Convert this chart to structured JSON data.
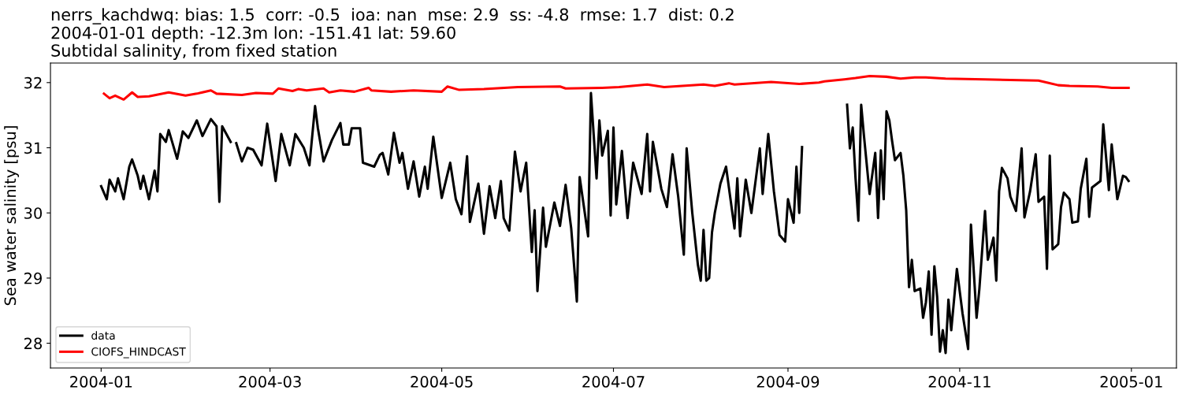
{
  "chart_data": {
    "type": "line",
    "title": "nerrs_kachdwq: bias: 1.5  corr: -0.5  ioa: nan  mse: 2.9  ss: -4.8  rmse: 1.7  dist: 0.2",
    "subtitle": "2004-01-01 depth: -12.3m lon: -151.41 lat: 59.60\nSubtidal salinity, from fixed station",
    "ylabel": "Sea water salinity [psu]",
    "xlim": [
      "2003-12-14",
      "2005-01-17"
    ],
    "xticks": [
      "2004-01",
      "2004-03",
      "2004-05",
      "2004-07",
      "2004-09",
      "2004-11",
      "2005-01"
    ],
    "ylim": [
      27.62,
      32.3
    ],
    "yticks": [
      28,
      29,
      30,
      31,
      32
    ],
    "grid": false,
    "legend": "bottom left",
    "line_style": "solid",
    "marker": "none",
    "series": [
      {
        "name": "data",
        "color": "#000000",
        "x": [
          "2004-01-01",
          "2004-01-03",
          "2004-01-04",
          "2004-01-06",
          "2004-01-07",
          "2004-01-09",
          "2004-01-11",
          "2004-01-12",
          "2004-01-14",
          "2004-01-15",
          "2004-01-16",
          "2004-01-18",
          "2004-01-20",
          "2004-01-21",
          "2004-01-22",
          "2004-01-24",
          "2004-01-25",
          "2004-01-28",
          "2004-01-30",
          "2004-02-01",
          "2004-02-04",
          "2004-02-06",
          "2004-02-09",
          "2004-02-11",
          "2004-02-12",
          "2004-02-13",
          "2004-02-16",
          "2004-02-17",
          "2004-02-18",
          "2004-02-20",
          "2004-02-22",
          "2004-02-24",
          "2004-02-27",
          "2004-02-29",
          "2004-03-03",
          "2004-03-05",
          "2004-03-08",
          "2004-03-10",
          "2004-03-13",
          "2004-03-15",
          "2004-03-17",
          "2004-03-18",
          "2004-03-20",
          "2004-03-23",
          "2004-03-26",
          "2004-03-27",
          "2004-03-29",
          "2004-03-30",
          "2004-04-02",
          "2004-04-03",
          "2004-04-07",
          "2004-04-09",
          "2004-04-10",
          "2004-04-12",
          "2004-04-14",
          "2004-04-16",
          "2004-04-17",
          "2004-04-19",
          "2004-04-21",
          "2004-04-23",
          "2004-04-25",
          "2004-04-26",
          "2004-04-28",
          "2004-05-01",
          "2004-05-04",
          "2004-05-06",
          "2004-05-08",
          "2004-05-10",
          "2004-05-11",
          "2004-05-14",
          "2004-05-16",
          "2004-05-18",
          "2004-05-20",
          "2004-05-22",
          "2004-05-23",
          "2004-05-25",
          "2004-05-27",
          "2004-05-29",
          "2004-05-31",
          "2004-06-02",
          "2004-06-03",
          "2004-06-04",
          "2004-06-06",
          "2004-06-07",
          "2004-06-10",
          "2004-06-12",
          "2004-06-14",
          "2004-06-16",
          "2004-06-18",
          "2004-06-19",
          "2004-06-22",
          "2004-06-23",
          "2004-06-25",
          "2004-06-26",
          "2004-06-27",
          "2004-06-29",
          "2004-06-30",
          "2004-07-01",
          "2004-07-02",
          "2004-07-04",
          "2004-07-06",
          "2004-07-08",
          "2004-07-11",
          "2004-07-13",
          "2004-07-14",
          "2004-07-15",
          "2004-07-18",
          "2004-07-20",
          "2004-07-22",
          "2004-07-24",
          "2004-07-26",
          "2004-07-27",
          "2004-07-29",
          "2004-07-31",
          "2004-08-01",
          "2004-08-02",
          "2004-08-03",
          "2004-08-04",
          "2004-08-05",
          "2004-08-06",
          "2004-08-08",
          "2004-08-10",
          "2004-08-13",
          "2004-08-14",
          "2004-08-15",
          "2004-08-17",
          "2004-08-19",
          "2004-08-22",
          "2004-08-23",
          "2004-08-25",
          "2004-08-27",
          "2004-08-29",
          "2004-08-31",
          "2004-09-01",
          "2004-09-03",
          "2004-09-04",
          "2004-09-05",
          "2004-09-06",
          "2004-09-15",
          "2004-09-22",
          "2004-09-23",
          "2004-09-24",
          "2004-09-25",
          "2004-09-26",
          "2004-09-27",
          "2004-09-28",
          "2004-09-30",
          "2004-10-02",
          "2004-10-03",
          "2004-10-04",
          "2004-10-05",
          "2004-10-06",
          "2004-10-07",
          "2004-10-08",
          "2004-10-09",
          "2004-10-11",
          "2004-10-12",
          "2004-10-13",
          "2004-10-14",
          "2004-10-15",
          "2004-10-16",
          "2004-10-18",
          "2004-10-19",
          "2004-10-20",
          "2004-10-21",
          "2004-10-22",
          "2004-10-23",
          "2004-10-24",
          "2004-10-25",
          "2004-10-26",
          "2004-10-27",
          "2004-10-28",
          "2004-10-29",
          "2004-10-31",
          "2004-11-02",
          "2004-11-04",
          "2004-11-05",
          "2004-11-07",
          "2004-11-08",
          "2004-11-10",
          "2004-11-11",
          "2004-11-13",
          "2004-11-14",
          "2004-11-15",
          "2004-11-16",
          "2004-11-18",
          "2004-11-19",
          "2004-11-21",
          "2004-11-23",
          "2004-11-24",
          "2004-11-26",
          "2004-11-28",
          "2004-11-29",
          "2004-12-01",
          "2004-12-02",
          "2004-12-03",
          "2004-12-04",
          "2004-12-06",
          "2004-12-07",
          "2004-12-08",
          "2004-12-10",
          "2004-12-11",
          "2004-12-13",
          "2004-12-14",
          "2004-12-16",
          "2004-12-17",
          "2004-12-18",
          "2004-12-21",
          "2004-12-22",
          "2004-12-24",
          "2004-12-25",
          "2004-12-27",
          "2004-12-29",
          "2004-12-30",
          "2004-12-31"
        ],
        "values": [
          30.41,
          30.21,
          30.51,
          30.33,
          30.53,
          30.21,
          30.71,
          30.82,
          30.57,
          30.37,
          30.57,
          30.21,
          30.65,
          30.33,
          31.21,
          31.09,
          31.27,
          30.83,
          31.25,
          31.15,
          31.42,
          31.18,
          31.44,
          31.33,
          30.17,
          31.33,
          31.09,
          null,
          31.07,
          30.79,
          31.0,
          30.97,
          30.73,
          31.37,
          30.49,
          31.21,
          30.73,
          31.21,
          31.0,
          30.73,
          31.64,
          31.3,
          30.79,
          31.12,
          31.38,
          31.05,
          31.05,
          31.3,
          31.3,
          30.77,
          30.71,
          30.89,
          30.92,
          30.59,
          31.23,
          30.77,
          30.92,
          30.37,
          30.79,
          30.25,
          30.71,
          30.37,
          31.17,
          30.23,
          30.77,
          30.21,
          29.98,
          30.87,
          29.86,
          30.45,
          29.68,
          30.41,
          29.92,
          30.49,
          29.92,
          29.73,
          30.94,
          30.33,
          30.77,
          29.4,
          30.04,
          28.8,
          30.08,
          29.48,
          30.16,
          29.8,
          30.43,
          29.76,
          28.64,
          30.55,
          29.64,
          31.84,
          30.53,
          31.42,
          30.88,
          31.26,
          29.96,
          31.31,
          30.13,
          30.95,
          29.92,
          30.77,
          30.29,
          31.21,
          30.33,
          31.09,
          30.37,
          30.09,
          30.9,
          30.25,
          29.36,
          30.99,
          30.0,
          29.2,
          28.96,
          29.74,
          28.96,
          29.0,
          29.7,
          30.0,
          30.45,
          30.71,
          29.76,
          30.53,
          29.64,
          30.51,
          30.0,
          30.99,
          30.29,
          31.21,
          30.33,
          29.66,
          29.56,
          30.21,
          29.85,
          30.71,
          30.0,
          31.01,
          null,
          31.66,
          30.99,
          31.31,
          30.53,
          29.88,
          31.66,
          31.18,
          30.29,
          30.92,
          29.92,
          30.96,
          30.21,
          31.56,
          31.42,
          31.1,
          30.81,
          30.92,
          30.57,
          30.04,
          28.86,
          29.28,
          28.8,
          28.84,
          28.39,
          28.63,
          29.1,
          28.13,
          29.18,
          28.71,
          27.87,
          28.2,
          27.85,
          28.67,
          28.2,
          29.14,
          28.46,
          27.91,
          29.82,
          28.39,
          28.84,
          30.03,
          29.28,
          29.62,
          28.96,
          30.33,
          30.69,
          30.53,
          30.25,
          30.03,
          30.99,
          29.93,
          30.33,
          30.9,
          30.17,
          30.25,
          29.14,
          30.88,
          29.44,
          29.52,
          30.09,
          30.31,
          30.21,
          29.85,
          29.87,
          30.37,
          30.83,
          29.94,
          30.39,
          30.49,
          31.36,
          30.35,
          31.05,
          30.21,
          30.57,
          30.55,
          30.49
        ]
      },
      {
        "name": "CIOFS_HINDCAST",
        "color": "#ff0000",
        "x": [
          "2004-01-02",
          "2004-01-04",
          "2004-01-06",
          "2004-01-09",
          "2004-01-12",
          "2004-01-14",
          "2004-01-18",
          "2004-01-25",
          "2004-01-31",
          "2004-02-04",
          "2004-02-09",
          "2004-02-11",
          "2004-02-20",
          "2004-02-25",
          "2004-03-02",
          "2004-03-04",
          "2004-03-09",
          "2004-03-11",
          "2004-03-14",
          "2004-03-20",
          "2004-03-22",
          "2004-03-26",
          "2004-03-31",
          "2004-04-05",
          "2004-04-06",
          "2004-04-13",
          "2004-04-21",
          "2004-05-01",
          "2004-05-03",
          "2004-05-07",
          "2004-05-16",
          "2004-05-28",
          "2004-06-12",
          "2004-06-14",
          "2004-06-27",
          "2004-07-03",
          "2004-07-13",
          "2004-07-19",
          "2004-08-02",
          "2004-08-06",
          "2004-08-11",
          "2004-08-13",
          "2004-08-26",
          "2004-09-05",
          "2004-09-12",
          "2004-09-14",
          "2004-09-21",
          "2004-09-25",
          "2004-09-30",
          "2004-10-06",
          "2004-10-11",
          "2004-10-16",
          "2004-10-20",
          "2004-10-27",
          "2004-11-10",
          "2004-11-19",
          "2004-11-29",
          "2004-12-02",
          "2004-12-06",
          "2004-12-10",
          "2004-12-20",
          "2004-12-25",
          "2004-12-31"
        ],
        "values": [
          31.83,
          31.76,
          31.8,
          31.74,
          31.85,
          31.78,
          31.79,
          31.85,
          31.8,
          31.83,
          31.88,
          31.83,
          31.81,
          31.84,
          31.83,
          31.91,
          31.87,
          31.9,
          31.88,
          31.91,
          31.85,
          31.88,
          31.86,
          31.92,
          31.88,
          31.86,
          31.88,
          31.86,
          31.94,
          31.89,
          31.9,
          31.93,
          31.94,
          31.91,
          31.92,
          31.93,
          31.97,
          31.93,
          31.97,
          31.95,
          31.99,
          31.97,
          32.01,
          31.98,
          32.0,
          32.02,
          32.05,
          32.07,
          32.1,
          32.09,
          32.06,
          32.08,
          32.08,
          32.06,
          32.05,
          32.04,
          32.03,
          32.0,
          31.96,
          31.95,
          31.94,
          31.92,
          31.92
        ]
      }
    ]
  }
}
